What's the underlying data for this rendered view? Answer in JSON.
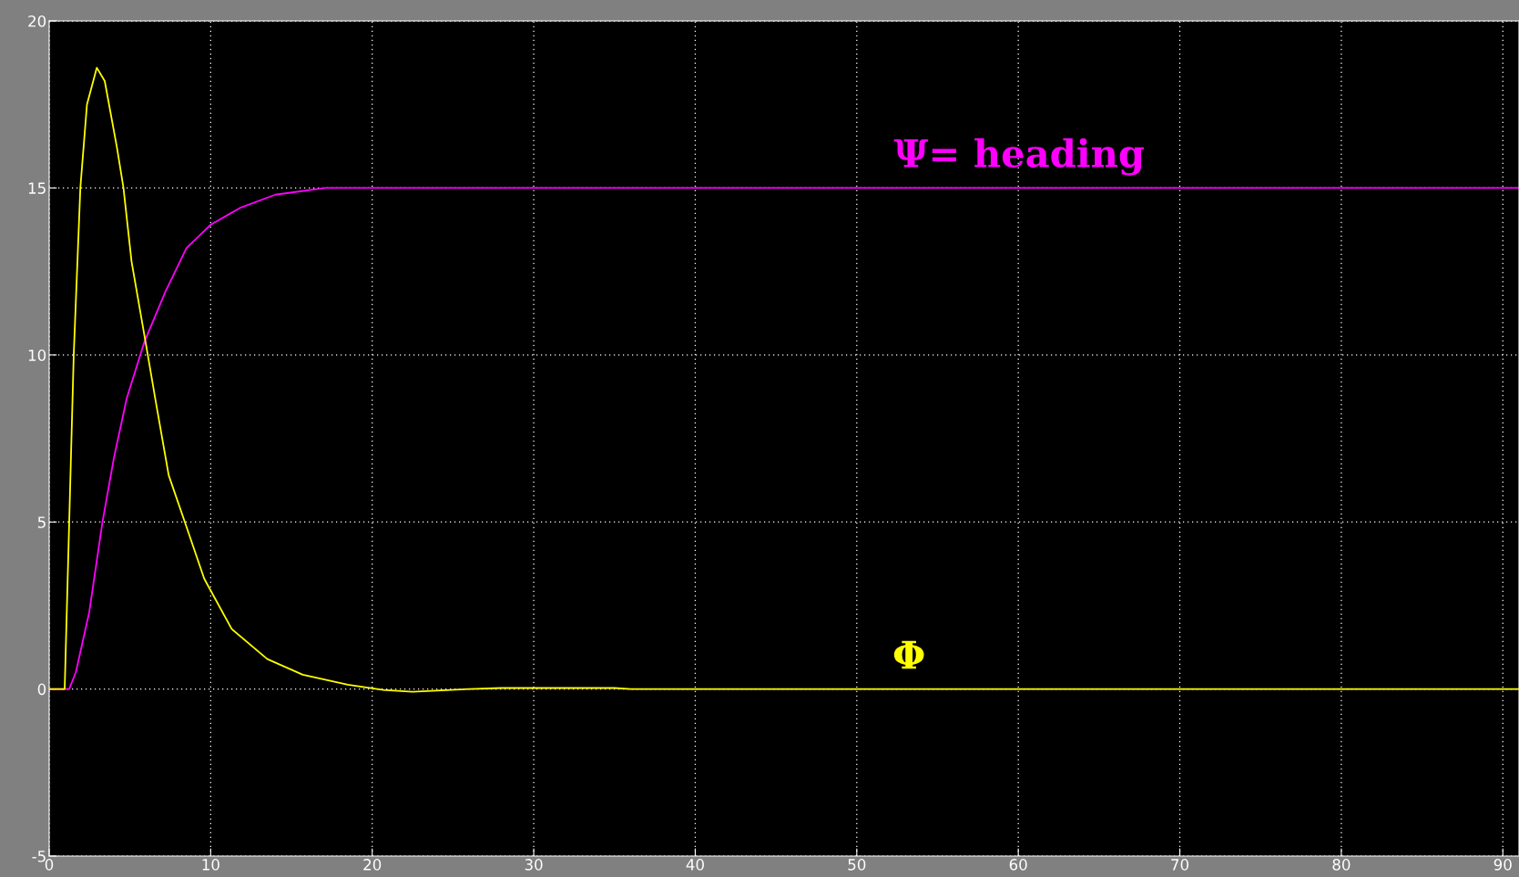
{
  "chart_data": {
    "type": "line",
    "xlim": [
      0,
      91
    ],
    "ylim": [
      -5,
      20
    ],
    "xticks": [
      0,
      10,
      20,
      30,
      40,
      50,
      60,
      70,
      80,
      90
    ],
    "yticks": [
      -5,
      0,
      5,
      10,
      15,
      20
    ],
    "grid": true,
    "line_style": "solid",
    "marker": "none",
    "series": [
      {
        "name": "Ψ= heading",
        "color": "#ff00ff",
        "x": [
          0,
          1.24,
          1.65,
          2.48,
          3.3,
          4.0,
          4.8,
          5.9,
          7.2,
          8.5,
          10,
          11.8,
          14.0,
          17.1,
          91
        ],
        "values": [
          0,
          0,
          0.5,
          2.3,
          5,
          6.9,
          8.7,
          10.4,
          11.9,
          13.2,
          13.9,
          14.4,
          14.8,
          15.0,
          15.0
        ]
      },
      {
        "name": "Φ",
        "color": "#ffff00",
        "x": [
          0,
          0.96,
          1.24,
          1.52,
          1.93,
          2.34,
          2.95,
          3.44,
          4.2,
          4.6,
          5.1,
          6.0,
          6.6,
          7.4,
          8.4,
          9.6,
          11.3,
          13.5,
          15.7,
          18.5,
          20.7,
          22.5,
          26,
          28,
          35,
          36,
          91
        ],
        "values": [
          0,
          0,
          5.0,
          10,
          15,
          17.5,
          18.6,
          18.2,
          16.2,
          15,
          12.8,
          10.3,
          8.6,
          6.4,
          5.0,
          3.3,
          1.8,
          0.9,
          0.43,
          0.13,
          -0.03,
          -0.08,
          0,
          0.03,
          0.03,
          0,
          0
        ]
      }
    ]
  }
}
